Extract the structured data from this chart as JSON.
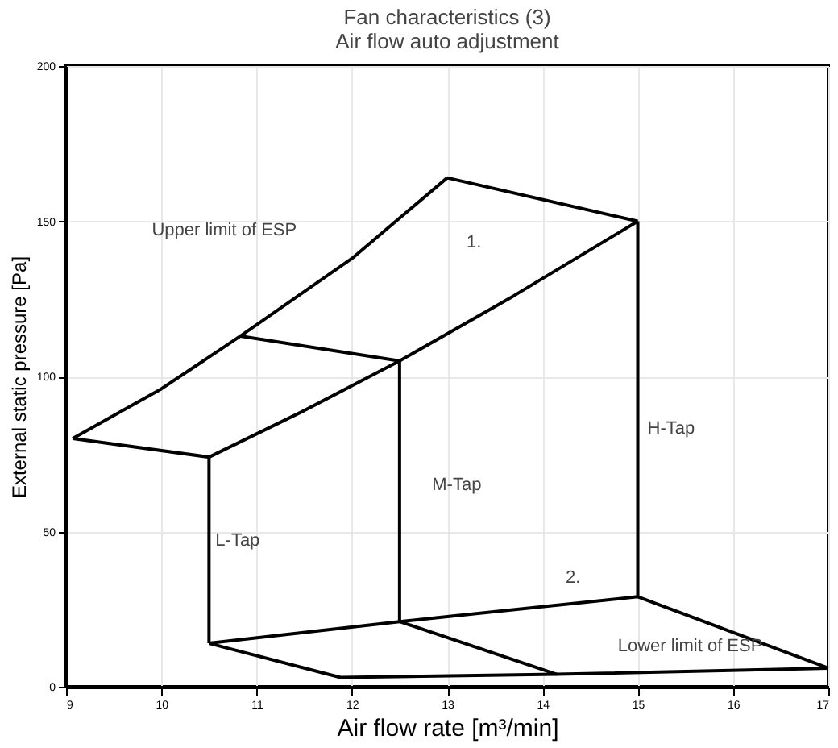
{
  "chart_data": {
    "type": "line",
    "title": "Fan characteristics (3)\nAir flow auto adjustment",
    "xlabel": "Air flow rate [m³/min]",
    "ylabel": "External static pressure [Pa]",
    "series": [
      {
        "color": "#000000",
        "x": [
          9.07,
          10,
          10.83,
          12,
          13
        ],
        "values": [
          80,
          96,
          113,
          138,
          164
        ]
      },
      {
        "color": "#000000",
        "x": [
          13,
          15
        ],
        "values": [
          164,
          150
        ]
      },
      {
        "color": "#000000",
        "x": [
          10.5,
          11.5,
          12.5,
          13.7,
          15
        ],
        "values": [
          74,
          89,
          105,
          126,
          150
        ]
      },
      {
        "color": "#000000",
        "x": [
          9.07,
          10.5
        ],
        "values": [
          80,
          74
        ]
      },
      {
        "color": "#000000",
        "x": [
          10.83,
          12.5
        ],
        "values": [
          113,
          105
        ]
      },
      {
        "color": "#000000",
        "x": [
          10.5,
          10.5
        ],
        "values": [
          74,
          14
        ]
      },
      {
        "color": "#000000",
        "x": [
          12.5,
          12.5
        ],
        "values": [
          105,
          21
        ]
      },
      {
        "color": "#000000",
        "x": [
          15,
          15
        ],
        "values": [
          150,
          29
        ]
      },
      {
        "color": "#000000",
        "x": [
          10.5,
          12.5,
          15,
          17
        ],
        "values": [
          14,
          21,
          29,
          6
        ]
      },
      {
        "color": "#000000",
        "x": [
          10.5,
          11.88,
          14.15,
          17
        ],
        "values": [
          14,
          3,
          4,
          6
        ]
      },
      {
        "color": "#000000",
        "x": [
          12.5,
          14.15
        ],
        "values": [
          21,
          4
        ]
      }
    ],
    "annotations": [
      "Upper limit of ESP",
      "L-Tap",
      "M-Tap",
      "H-Tap",
      "Lower limit of ESP",
      "1.",
      "2."
    ],
    "xlim": [
      9,
      17
    ],
    "xticks": [
      9,
      10,
      11,
      12,
      13,
      14,
      15,
      16,
      17
    ],
    "ylim": [
      0,
      200
    ],
    "yticks": [
      0,
      50,
      100,
      150,
      200
    ],
    "grid": true,
    "marker": "none",
    "line_style": "solid"
  }
}
